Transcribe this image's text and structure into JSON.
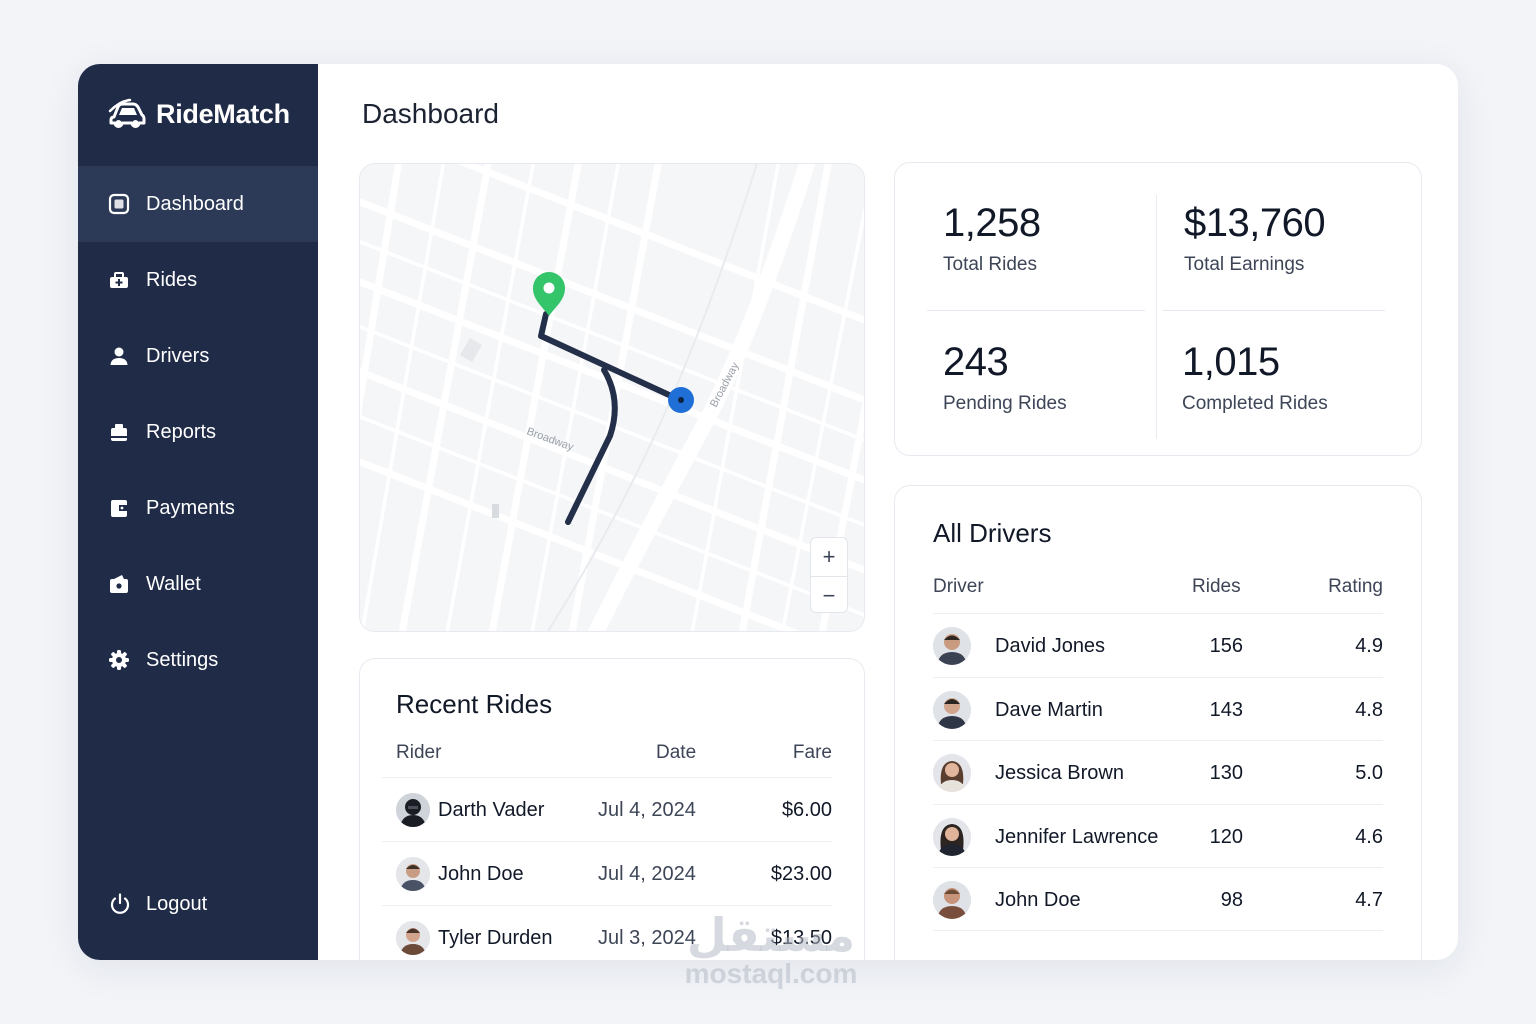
{
  "app": {
    "name": "RideMatch"
  },
  "sidebar": {
    "items": [
      {
        "label": "Dashboard",
        "icon": "dashboard-icon",
        "active": true
      },
      {
        "label": "Rides",
        "icon": "rides-icon"
      },
      {
        "label": "Drivers",
        "icon": "user-icon"
      },
      {
        "label": "Reports",
        "icon": "reports-icon"
      },
      {
        "label": "Payments",
        "icon": "payments-icon"
      },
      {
        "label": "Wallet",
        "icon": "wallet-icon"
      },
      {
        "label": "Settings",
        "icon": "gear-icon"
      }
    ],
    "logout": "Logout"
  },
  "page": {
    "title": "Dashboard"
  },
  "map": {
    "zoom_in": "+",
    "zoom_out": "−",
    "street_labels": [
      "Broadway",
      "Broadway"
    ]
  },
  "stats": {
    "total_rides": {
      "value": "1,258",
      "label": "Total Rides"
    },
    "total_earnings": {
      "value": "$13,760",
      "label": "Total Earnings"
    },
    "pending_rides": {
      "value": "243",
      "label": "Pending Rides"
    },
    "completed_rides": {
      "value": "1,015",
      "label": "Completed Rides"
    }
  },
  "recent_rides": {
    "title": "Recent Rides",
    "columns": {
      "rider": "Rider",
      "date": "Date",
      "fare": "Fare"
    },
    "rows": [
      {
        "rider": "Darth Vader",
        "date": "Jul 4, 2024",
        "fare": "$6.00"
      },
      {
        "rider": "John Doe",
        "date": "Jul 4, 2024",
        "fare": "$23.00"
      },
      {
        "rider": "Tyler Durden",
        "date": "Jul 3, 2024",
        "fare": "$13.50"
      }
    ]
  },
  "drivers": {
    "title": "All Drivers",
    "columns": {
      "driver": "Driver",
      "rides": "Rides",
      "rating": "Rating"
    },
    "rows": [
      {
        "name": "David Jones",
        "rides": "156",
        "rating": "4.9"
      },
      {
        "name": "Dave Martin",
        "rides": "143",
        "rating": "4.8"
      },
      {
        "name": "Jessica Brown",
        "rides": "130",
        "rating": "5.0"
      },
      {
        "name": "Jennifer Lawrence",
        "rides": "120",
        "rating": "4.6"
      },
      {
        "name": "John Doe",
        "rides": "98",
        "rating": "4.7"
      }
    ]
  },
  "watermark": {
    "arabic": "مستقل",
    "latin": "mostaql.com"
  },
  "colors": {
    "sidebar": "#1f2b47",
    "sidebar_active": "#2c3a58",
    "route": "#24304a",
    "pin_start": "#34c46a",
    "pin_end": "#1f6fd6"
  }
}
